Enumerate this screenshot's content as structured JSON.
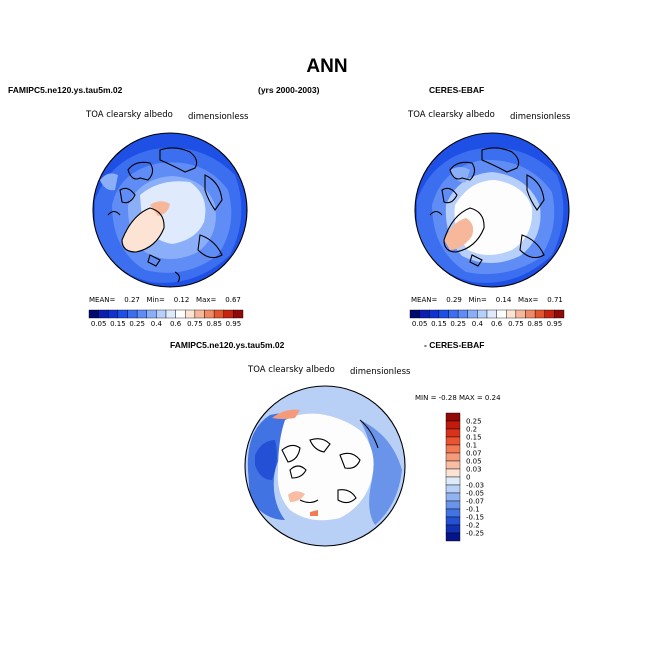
{
  "page": {
    "title": "ANN"
  },
  "panels": [
    {
      "id": "model",
      "case_label": "FAMIPC5.ne120.ys.tau5m.02",
      "variable": "TOA clearsky albedo",
      "units": "dimensionless",
      "stats": {
        "mean_label": "MEAN=",
        "mean": "0.27",
        "min_label": "Min=",
        "min": "0.12",
        "max_label": "Max=",
        "max": "0.67"
      }
    },
    {
      "id": "obs",
      "case_label": "CERES-EBAF",
      "variable": "TOA clearsky albedo",
      "units": "dimensionless",
      "stats": {
        "mean_label": "MEAN=",
        "mean": "0.29",
        "min_label": "Min=",
        "min": "0.14",
        "max_label": "Max=",
        "max": "0.71"
      }
    },
    {
      "id": "diff",
      "variable": "TOA clearsky albedo",
      "units": "dimensionless",
      "stats_text": "MIN =   -0.28  MAX =    0.24"
    }
  ],
  "period": "(yrs 2000-2003)",
  "diff_title_left": "FAMIPC5.ne120.ys.tau5m.02",
  "diff_title_right": "- CERES-EBAF",
  "colorbar_abs": {
    "labels": [
      "0.05",
      "0.15",
      "0.25",
      "0.4",
      "0.6",
      "0.75",
      "0.85",
      "0.95"
    ],
    "colors": [
      "#000a6e",
      "#0a1fb0",
      "#1232d0",
      "#1e50e6",
      "#3c6ef0",
      "#5f8cf5",
      "#8aaff8",
      "#b7cffb",
      "#dfeafd",
      "#fdfdfd",
      "#fde3d3",
      "#f7b79a",
      "#ef8a66",
      "#e2562f",
      "#c52410",
      "#8f0b07"
    ]
  },
  "colorbar_diff": {
    "labels": [
      "0.25",
      "0.2",
      "0.15",
      "0.1",
      "0.07",
      "0.05",
      "0.03",
      "0",
      "-0.03",
      "-0.05",
      "-0.07",
      "-0.1",
      "-0.15",
      "-0.2",
      "-0.25"
    ],
    "colors": [
      "#8f0b07",
      "#c21a0c",
      "#d9321b",
      "#ea5430",
      "#f27a55",
      "#f59b7b",
      "#f8bea4",
      "#fde3d3",
      "#deebfa",
      "#b9d0f6",
      "#92b3f1",
      "#6a93ea",
      "#4273e2",
      "#2450d6",
      "#1230b2",
      "#06148a"
    ]
  },
  "colors": {
    "ocean_deep": "#1e50e6",
    "ocean_mid": "#3c6ef0",
    "land_light": "#8aaff8",
    "ice_white": "#fdfdfd",
    "greenland_model": "#fde3d3",
    "greenland_peach": "#f7b79a"
  }
}
